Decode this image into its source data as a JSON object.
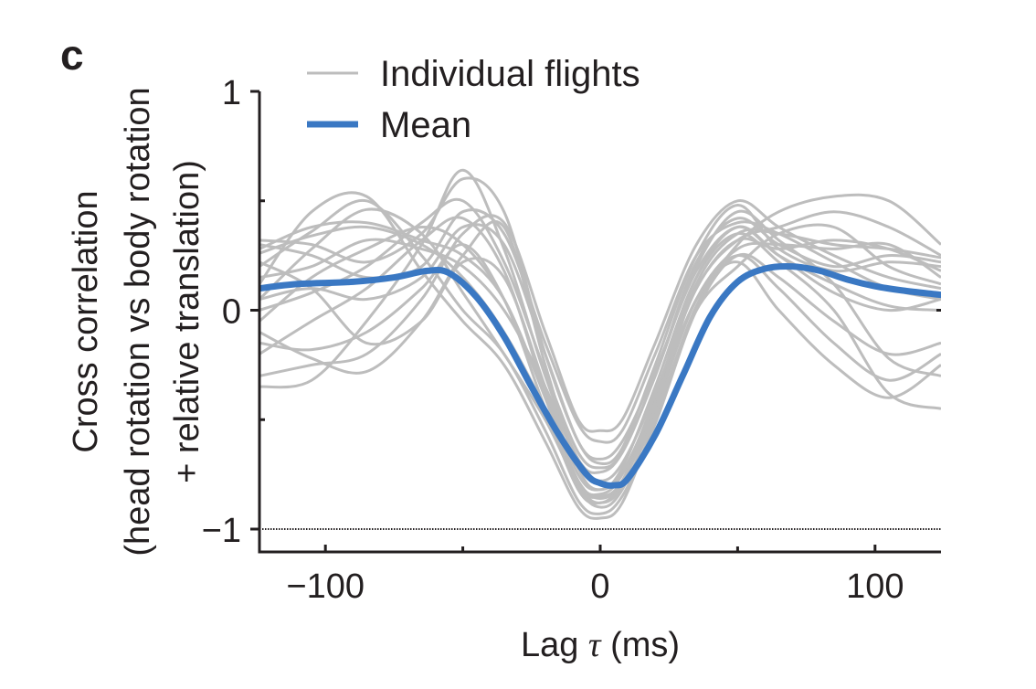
{
  "panel_label": "c",
  "colors": {
    "individual": "#bdbdbd",
    "mean": "#3a78c3",
    "axis": "#231f20"
  },
  "chart_data": {
    "type": "line",
    "xlabel_prefix": "Lag ",
    "xlabel_symbol": "τ",
    "xlabel_suffix": " (ms)",
    "ylabel_lines": [
      "Cross correlation",
      "(head rotation vs body rotation",
      "+ relative translation)"
    ],
    "xlim": [
      -124,
      124
    ],
    "ylim": [
      -1.05,
      1
    ],
    "xticks_major": [
      -100,
      0,
      100
    ],
    "xticks_minor": [
      -50,
      50
    ],
    "xtick_labels": [
      "−100",
      "0",
      "100"
    ],
    "yticks_major": [
      1,
      0,
      -1
    ],
    "yticks_minor": [
      0.5,
      -0.5
    ],
    "ytick_labels": [
      "1",
      "0",
      "−1"
    ],
    "reference_line": {
      "y": -1,
      "style": "dotted"
    },
    "legend": {
      "position": "top-left",
      "entries": [
        "Individual flights",
        "Mean"
      ]
    },
    "mean": {
      "x": [
        -124,
        -110,
        -90,
        -75,
        -63,
        -55,
        -45,
        -35,
        -25,
        -15,
        -5,
        0,
        5,
        10,
        20,
        30,
        40,
        50,
        60,
        70,
        80,
        90,
        100,
        110,
        124
      ],
      "y": [
        0.1,
        0.12,
        0.13,
        0.15,
        0.18,
        0.17,
        0.06,
        -0.12,
        -0.35,
        -0.57,
        -0.75,
        -0.79,
        -0.8,
        -0.77,
        -0.57,
        -0.3,
        -0.03,
        0.13,
        0.19,
        0.2,
        0.18,
        0.14,
        0.11,
        0.09,
        0.07
      ]
    },
    "individual": {
      "x": [
        -124,
        -105,
        -85,
        -65,
        -50,
        -35,
        -20,
        -8,
        0,
        8,
        20,
        35,
        50,
        65,
        85,
        105,
        124
      ],
      "series": [
        {
          "y": [
            0.32,
            0.3,
            0.22,
            0.35,
            0.6,
            0.45,
            -0.2,
            -0.6,
            -0.7,
            -0.63,
            -0.25,
            0.25,
            0.48,
            0.28,
            0.18,
            0.22,
            0.2
          ]
        },
        {
          "y": [
            -0.35,
            -0.32,
            -0.05,
            0.3,
            0.64,
            0.28,
            -0.3,
            -0.68,
            -0.74,
            -0.65,
            -0.3,
            0.2,
            0.45,
            0.32,
            0.12,
            -0.22,
            -0.3
          ]
        },
        {
          "y": [
            0.05,
            0.28,
            0.46,
            0.35,
            0.08,
            -0.2,
            -0.5,
            -0.8,
            -0.88,
            -0.78,
            -0.4,
            0.1,
            0.32,
            0.38,
            0.45,
            0.38,
            0.25
          ]
        },
        {
          "y": [
            -0.1,
            -0.22,
            -0.28,
            -0.05,
            0.25,
            0.38,
            -0.25,
            -0.72,
            -0.82,
            -0.72,
            -0.35,
            0.15,
            0.35,
            0.22,
            0.0,
            -0.38,
            -0.45
          ]
        },
        {
          "y": [
            0.26,
            0.34,
            0.38,
            0.3,
            0.15,
            -0.1,
            -0.45,
            -0.78,
            -0.86,
            -0.78,
            -0.45,
            0.05,
            0.28,
            0.3,
            0.28,
            0.3,
            0.15
          ]
        },
        {
          "y": [
            -0.2,
            -0.05,
            0.1,
            0.32,
            0.42,
            0.18,
            -0.38,
            -0.78,
            -0.84,
            -0.75,
            -0.4,
            0.15,
            0.38,
            0.25,
            0.08,
            0.0,
            0.05
          ]
        },
        {
          "y": [
            0.2,
            0.36,
            0.5,
            0.25,
            0.0,
            -0.2,
            -0.55,
            -0.87,
            -0.93,
            -0.85,
            -0.52,
            0.0,
            0.25,
            0.15,
            -0.05,
            -0.2,
            -0.15
          ]
        },
        {
          "y": [
            0.12,
            0.45,
            0.52,
            0.18,
            -0.05,
            -0.25,
            -0.6,
            -0.9,
            -0.95,
            -0.88,
            -0.5,
            0.02,
            0.3,
            0.45,
            0.52,
            0.5,
            0.3
          ]
        },
        {
          "y": [
            0.0,
            0.08,
            0.2,
            0.4,
            0.5,
            0.22,
            -0.28,
            -0.65,
            -0.72,
            -0.65,
            -0.3,
            0.22,
            0.42,
            0.3,
            0.2,
            0.25,
            0.22
          ]
        },
        {
          "y": [
            -0.15,
            -0.18,
            -0.1,
            0.1,
            0.3,
            0.05,
            -0.45,
            -0.82,
            -0.88,
            -0.8,
            -0.42,
            0.05,
            0.25,
            0.1,
            -0.15,
            -0.32,
            -0.2
          ]
        },
        {
          "y": [
            0.3,
            0.25,
            0.15,
            0.2,
            0.45,
            0.35,
            -0.15,
            -0.52,
            -0.6,
            -0.55,
            -0.2,
            0.25,
            0.4,
            0.35,
            0.22,
            0.1,
            0.05
          ]
        },
        {
          "y": [
            0.15,
            0.2,
            0.32,
            0.28,
            0.2,
            0.0,
            -0.35,
            -0.7,
            -0.78,
            -0.7,
            -0.38,
            0.1,
            0.32,
            0.28,
            0.32,
            0.28,
            0.18
          ]
        },
        {
          "y": [
            -0.3,
            -0.25,
            -0.2,
            0.05,
            0.35,
            0.4,
            -0.1,
            -0.5,
            -0.55,
            -0.5,
            -0.15,
            0.3,
            0.5,
            0.38,
            0.25,
            0.15,
            0.1
          ]
        },
        {
          "y": [
            0.22,
            0.1,
            -0.15,
            -0.05,
            0.22,
            0.15,
            -0.35,
            -0.75,
            -0.82,
            -0.74,
            -0.42,
            0.05,
            0.22,
            0.0,
            -0.25,
            -0.4,
            -0.25
          ]
        },
        {
          "y": [
            0.28,
            0.38,
            0.4,
            0.32,
            0.25,
            0.05,
            -0.4,
            -0.8,
            -0.85,
            -0.78,
            -0.45,
            0.12,
            0.35,
            0.35,
            0.3,
            0.28,
            0.24
          ]
        },
        {
          "y": [
            0.05,
            0.1,
            0.05,
            0.15,
            0.38,
            0.3,
            -0.2,
            -0.6,
            -0.68,
            -0.6,
            -0.28,
            0.18,
            0.38,
            0.25,
            0.12,
            0.02,
            0.0
          ]
        },
        {
          "y": [
            -0.05,
            0.15,
            0.28,
            0.38,
            0.3,
            0.05,
            -0.4,
            -0.8,
            -0.9,
            -0.82,
            -0.48,
            0.0,
            0.2,
            0.35,
            0.38,
            0.2,
            0.12
          ]
        }
      ]
    }
  }
}
